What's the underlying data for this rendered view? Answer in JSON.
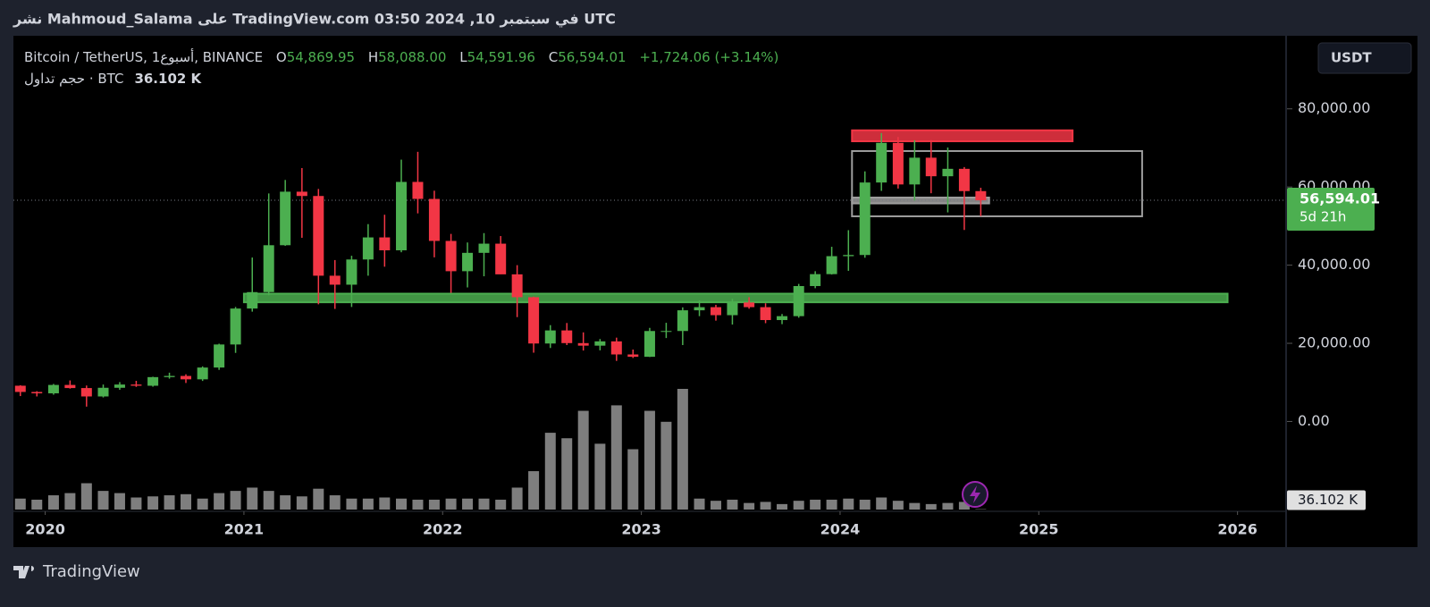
{
  "header": {
    "published": "نشر Mahmoud_Salama على TradingView.com في سبتمبر 10, 2024 03:50 UTC"
  },
  "legend": {
    "symbol": "Bitcoin / TetherUS, 1أسبوع, BINANCE",
    "open_key": "O",
    "open": {
      "value": 54869.95,
      "label": "54,869.95"
    },
    "high_key": "H",
    "high": {
      "value": 58088,
      "label": "58,088.00"
    },
    "low_key": "L",
    "low": {
      "value": 54591.96,
      "label": "54,591.96"
    },
    "close_key": "C",
    "close": {
      "value": 56594.01,
      "label": "56,594.01"
    },
    "change": "+1,724.06 (+3.14%)",
    "volume_name": "حجم تداول · BTC",
    "volume": {
      "value": 36102,
      "label": "36.102 K"
    }
  },
  "currency_button": "USDT",
  "price_label": {
    "value": 56594.01,
    "label": "56,594.01",
    "countdown": "5d 21h"
  },
  "footer": {
    "brand": "TradingView"
  },
  "chart_data": {
    "type": "candlestick",
    "x": [
      2019.875,
      2019.958,
      2020.042,
      2020.125,
      2020.208,
      2020.292,
      2020.375,
      2020.458,
      2020.542,
      2020.625,
      2020.708,
      2020.792,
      2020.875,
      2020.958,
      2021.042,
      2021.125,
      2021.208,
      2021.292,
      2021.375,
      2021.458,
      2021.542,
      2021.625,
      2021.708,
      2021.792,
      2021.875,
      2021.958,
      2022.042,
      2022.125,
      2022.208,
      2022.292,
      2022.375,
      2022.458,
      2022.542,
      2022.625,
      2022.708,
      2022.792,
      2022.875,
      2022.958,
      2023.042,
      2023.125,
      2023.208,
      2023.292,
      2023.375,
      2023.458,
      2023.542,
      2023.625,
      2023.708,
      2023.792,
      2023.875,
      2023.958,
      2024.042,
      2024.125,
      2024.208,
      2024.292,
      2024.375,
      2024.458,
      2024.542,
      2024.625,
      2024.708
    ],
    "open": [
      9150,
      7550,
      7200,
      9350,
      8550,
      6400,
      8620,
      9450,
      9140,
      11350,
      11650,
      10780,
      13800,
      19700,
      28900,
      33100,
      45100,
      58800,
      57700,
      37300,
      35000,
      41450,
      47100,
      43800,
      61300,
      56950,
      46200,
      38450,
      43150,
      45500,
      37650,
      31800,
      19950,
      23300,
      20050,
      19400,
      20500,
      17150,
      16550,
      23150,
      23150,
      28450,
      29250,
      27200,
      30450,
      29250,
      25950,
      26950,
      34650,
      37700,
      42300,
      42600,
      61150,
      71300,
      60650,
      67500,
      62750,
      64650,
      58950
    ],
    "high": [
      9270,
      7750,
      9600,
      10500,
      9200,
      9450,
      10070,
      10400,
      11450,
      12480,
      12070,
      14100,
      19900,
      29300,
      41950,
      58350,
      61800,
      64850,
      59500,
      41300,
      42400,
      50500,
      52900,
      67000,
      69000,
      59050,
      48000,
      45800,
      48200,
      47450,
      40000,
      31950,
      24650,
      25200,
      22800,
      21100,
      21450,
      18400,
      23950,
      25250,
      29200,
      31000,
      29850,
      31400,
      31800,
      30250,
      27500,
      35200,
      38450,
      44700,
      48950,
      64000,
      73800,
      72800,
      71950,
      72000,
      70100,
      65100,
      59800
    ],
    "low": [
      6500,
      6400,
      6850,
      8400,
      3800,
      6150,
      8100,
      8850,
      8900,
      10950,
      9850,
      10370,
      13200,
      17550,
      28100,
      32300,
      44950,
      47000,
      30000,
      28800,
      29300,
      37300,
      39600,
      43300,
      53250,
      42000,
      32900,
      34300,
      37150,
      37700,
      26700,
      17600,
      18800,
      19550,
      18150,
      18200,
      15500,
      16250,
      16500,
      21350,
      19550,
      26950,
      25800,
      24800,
      28850,
      25150,
      24900,
      26550,
      34100,
      37600,
      38550,
      41900,
      59000,
      59600,
      56550,
      58400,
      53500,
      49000,
      52550
    ],
    "close": [
      7550,
      7200,
      9350,
      8550,
      6400,
      8620,
      9450,
      9140,
      11350,
      11650,
      10780,
      13800,
      19700,
      28900,
      33100,
      45100,
      58800,
      57700,
      37300,
      35000,
      41450,
      47100,
      43800,
      61300,
      56950,
      46200,
      38450,
      43150,
      45500,
      37650,
      31800,
      19950,
      23300,
      20050,
      19400,
      20500,
      17150,
      16550,
      23150,
      23150,
      28450,
      29250,
      27200,
      30450,
      29250,
      25950,
      26950,
      34650,
      37700,
      42300,
      42600,
      61150,
      71300,
      60650,
      67500,
      62750,
      64650,
      58950,
      56594.01
    ],
    "volume": [
      1000000,
      900000,
      1300000,
      1500000,
      2400000,
      1700000,
      1500000,
      1100000,
      1200000,
      1300000,
      1400000,
      1000000,
      1500000,
      1700000,
      2000000,
      1700000,
      1300000,
      1200000,
      1900000,
      1300000,
      1000000,
      1000000,
      1100000,
      1000000,
      900000,
      900000,
      1000000,
      1000000,
      1000000,
      900000,
      2000000,
      3500000,
      7000000,
      6500000,
      9000000,
      6000000,
      9500000,
      5500000,
      9000000,
      8000000,
      11000000,
      1000000,
      800000,
      900000,
      600000,
      700000,
      500000,
      800000,
      900000,
      900000,
      1000000,
      900000,
      1100000,
      800000,
      600000,
      500000,
      600000,
      700000,
      36102
    ],
    "volume_value_labels_last": "36.102 K",
    "up_color": "#4caf50",
    "down_color": "#f23645",
    "volume_color": "#9e9e9e",
    "xlim": [
      2019.84,
      2026.24
    ],
    "xticks": [
      2020,
      2021,
      2022,
      2023,
      2024,
      2025,
      2026
    ],
    "ylim": [
      -23000,
      98700
    ],
    "yticks": [
      {
        "value": 0,
        "label": "0.00"
      },
      {
        "value": 20000,
        "label": "20,000.00"
      },
      {
        "value": 40000,
        "label": "40,000.00"
      },
      {
        "value": 60000,
        "label": "60,000.00"
      },
      {
        "value": 80000,
        "label": "80,000.00"
      }
    ],
    "zones": [
      {
        "x": [
          2021.0,
          2025.95
        ],
        "y": [
          30500,
          32700
        ],
        "color": "#4caf50"
      },
      {
        "x": [
          2024.06,
          2025.17
        ],
        "y": [
          71700,
          74500
        ],
        "color": "#f23645"
      },
      {
        "x": [
          2024.06,
          2025.52
        ],
        "y": [
          52500,
          69200
        ],
        "color": "none"
      },
      {
        "x": [
          2024.06,
          2024.75
        ],
        "y": [
          55800,
          57300
        ],
        "color": "#9e9e9e"
      }
    ]
  }
}
